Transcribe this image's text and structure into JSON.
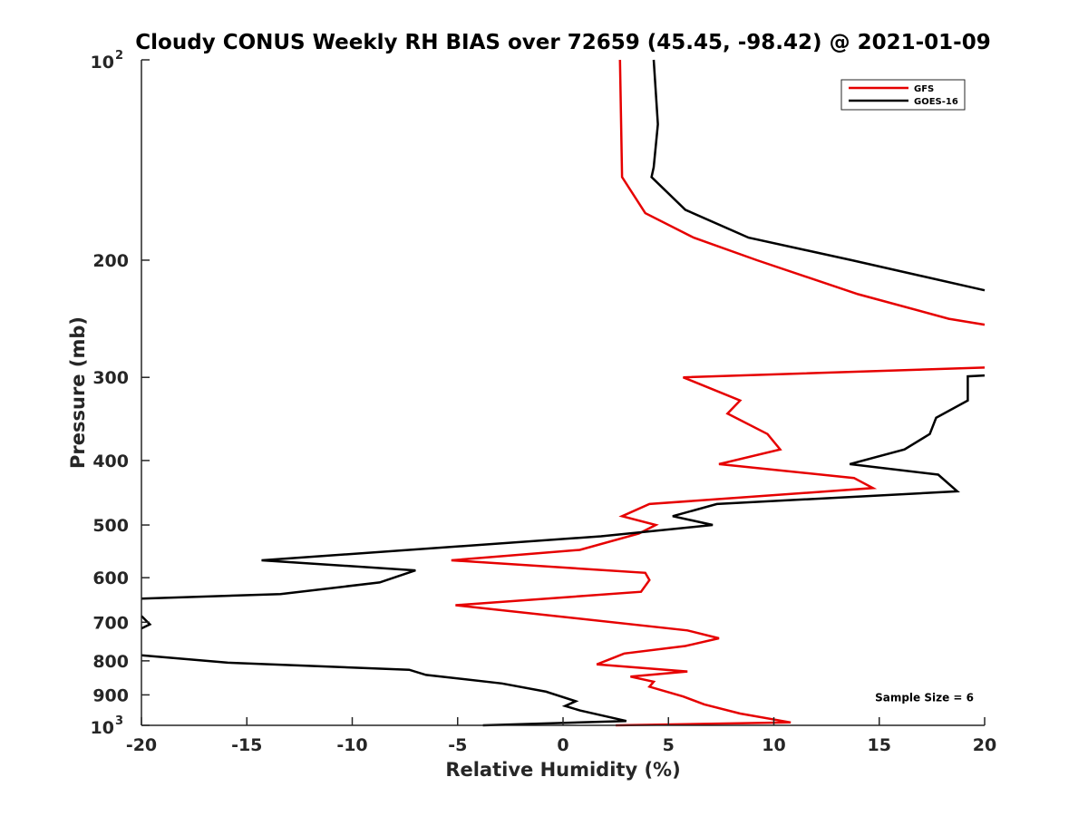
{
  "chart_data": {
    "type": "line",
    "title": "Cloudy CONUS Weekly RH BIAS over 72659 (45.45, -98.42) @ 2021-01-09",
    "xlabel": "Relative Humidity (%)",
    "ylabel": "Pressure (mb)",
    "xlim": [
      -20,
      20
    ],
    "ylim": [
      100,
      1000
    ],
    "y_scale": "log",
    "y_reversed": true,
    "x_ticks": [
      {
        "value": -20,
        "label": "-20"
      },
      {
        "value": -15,
        "label": "-15"
      },
      {
        "value": -10,
        "label": "-10"
      },
      {
        "value": -5,
        "label": "-5"
      },
      {
        "value": 0,
        "label": "0"
      },
      {
        "value": 5,
        "label": "5"
      },
      {
        "value": 10,
        "label": "10"
      },
      {
        "value": 15,
        "label": "15"
      },
      {
        "value": 20,
        "label": "20"
      }
    ],
    "y_ticks": [
      {
        "value": 100,
        "label": "10",
        "sup": "2"
      },
      {
        "value": 200,
        "label": "200",
        "sup": ""
      },
      {
        "value": 300,
        "label": "300",
        "sup": ""
      },
      {
        "value": 400,
        "label": "400",
        "sup": ""
      },
      {
        "value": 500,
        "label": "500",
        "sup": ""
      },
      {
        "value": 600,
        "label": "600",
        "sup": ""
      },
      {
        "value": 700,
        "label": "700",
        "sup": ""
      },
      {
        "value": 800,
        "label": "800",
        "sup": ""
      },
      {
        "value": 900,
        "label": "900",
        "sup": ""
      },
      {
        "value": 1000,
        "label": "10",
        "sup": "3"
      }
    ],
    "grid": false,
    "legend_position": "top-right",
    "series": [
      {
        "name": "GFS",
        "color": "#e60000",
        "points": [
          [
            2.7,
            100
          ],
          [
            2.8,
            150
          ],
          [
            3.9,
            170
          ],
          [
            6.2,
            185
          ],
          [
            9.2,
            200
          ],
          [
            14.0,
            225
          ],
          [
            18.3,
            245
          ],
          [
            20.0,
            250
          ],
          [
            null,
            null
          ],
          [
            20.0,
            290
          ],
          [
            5.7,
            300
          ],
          [
            8.4,
            325
          ],
          [
            7.8,
            340
          ],
          [
            9.7,
            365
          ],
          [
            10.3,
            385
          ],
          [
            7.4,
            405
          ],
          [
            13.8,
            425
          ],
          [
            14.7,
            440
          ],
          [
            4.1,
            465
          ],
          [
            2.8,
            485
          ],
          [
            4.4,
            500
          ],
          [
            3.6,
            515
          ],
          [
            0.8,
            545
          ],
          [
            -5.3,
            565
          ],
          [
            3.9,
            590
          ],
          [
            4.1,
            605
          ],
          [
            3.7,
            630
          ],
          [
            -5.1,
            660
          ],
          [
            5.9,
            720
          ],
          [
            7.4,
            740
          ],
          [
            5.8,
            760
          ],
          [
            2.9,
            780
          ],
          [
            1.6,
            810
          ],
          [
            5.9,
            830
          ],
          [
            3.2,
            845
          ],
          [
            4.3,
            860
          ],
          [
            4.1,
            875
          ],
          [
            5.7,
            905
          ],
          [
            6.7,
            930
          ],
          [
            8.4,
            960
          ],
          [
            10.8,
            990
          ],
          [
            2.5,
            1000
          ]
        ]
      },
      {
        "name": "GOES-16",
        "color": "#000000",
        "points": [
          [
            4.3,
            100
          ],
          [
            4.5,
            125
          ],
          [
            4.3,
            145
          ],
          [
            4.2,
            150
          ],
          [
            5.8,
            168
          ],
          [
            8.8,
            185
          ],
          [
            13.7,
            200
          ],
          [
            20.0,
            222
          ],
          [
            null,
            null
          ],
          [
            20.0,
            298
          ],
          [
            19.2,
            299
          ],
          [
            19.2,
            325
          ],
          [
            17.7,
            345
          ],
          [
            17.4,
            365
          ],
          [
            16.2,
            385
          ],
          [
            13.6,
            405
          ],
          [
            17.8,
            420
          ],
          [
            18.7,
            445
          ],
          [
            7.3,
            465
          ],
          [
            5.2,
            485
          ],
          [
            7.1,
            500
          ],
          [
            1.8,
            520
          ],
          [
            -14.3,
            565
          ],
          [
            -7.0,
            585
          ],
          [
            -8.7,
            610
          ],
          [
            -13.4,
            635
          ],
          [
            -20.0,
            645
          ],
          [
            null,
            null
          ],
          [
            -20.0,
            685
          ],
          [
            -19.6,
            705
          ],
          [
            -20.0,
            715
          ],
          [
            null,
            null
          ],
          [
            -20.0,
            785
          ],
          [
            -15.9,
            805
          ],
          [
            -7.3,
            825
          ],
          [
            -6.5,
            840
          ],
          [
            -2.9,
            865
          ],
          [
            -0.8,
            890
          ],
          [
            0.6,
            920
          ],
          [
            0.1,
            935
          ],
          [
            0.8,
            950
          ],
          [
            3.0,
            985
          ],
          [
            -3.8,
            1000
          ]
        ]
      }
    ],
    "annotations": [
      {
        "text": "Sample Size = 6",
        "x": 14.8,
        "y": 920
      }
    ]
  }
}
